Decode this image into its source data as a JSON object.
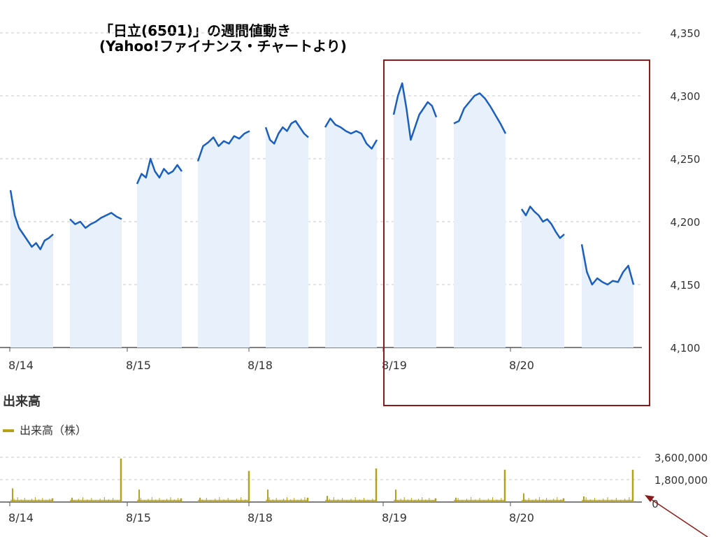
{
  "header": {
    "title_line1": "「日立(6501)」の週間値動き",
    "title_line2": "(Yahoo!ファイナンス・チャートより)"
  },
  "volume_section": {
    "heading": "出来高",
    "legend_label": "出来高（株）"
  },
  "colors": {
    "price_line": "#1a5fbf",
    "price_fill": "#e7f0fb",
    "volume_bar": "#b5a21a",
    "highlight_box": "#8b1a1a",
    "arrow": "#8b1a1a",
    "grid": "#c8c8c8",
    "axis_text": "#333333"
  },
  "chart_data": [
    {
      "type": "line",
      "subtype": "area",
      "name_text": "price",
      "x_ticks": [
        "8/14",
        "8/15",
        "8/18",
        "8/19",
        "8/20"
      ],
      "y_ticks": [
        "4,100",
        "4,150",
        "4,200",
        "4,250",
        "4,300",
        "4,350"
      ],
      "ylim": [
        4100,
        4350
      ],
      "grid": true,
      "y_axis_side": "right",
      "sessions": [
        {
          "day": "8/14",
          "half": "am",
          "values": [
            4225,
            4205,
            4195,
            4190,
            4185,
            4180,
            4183,
            4178,
            4185,
            4187,
            4190
          ]
        },
        {
          "day": "8/14",
          "half": "pm",
          "values": [
            4202,
            4198,
            4200,
            4195,
            4198,
            4200,
            4203,
            4205,
            4207,
            4204,
            4202
          ]
        },
        {
          "day": "8/15",
          "half": "am",
          "values": [
            4230,
            4238,
            4235,
            4250,
            4240,
            4235,
            4242,
            4238,
            4240,
            4245,
            4240
          ]
        },
        {
          "day": "8/15",
          "half": "pm",
          "values": [
            4248,
            4260,
            4263,
            4267,
            4260,
            4264,
            4262,
            4268,
            4266,
            4270,
            4272
          ]
        },
        {
          "day": "8/18",
          "half": "am",
          "values": [
            4275,
            4265,
            4262,
            4270,
            4275,
            4272,
            4278,
            4280,
            4275,
            4270,
            4267
          ]
        },
        {
          "day": "8/18",
          "half": "pm",
          "values": [
            4275,
            4282,
            4277,
            4275,
            4272,
            4270,
            4272,
            4270,
            4262,
            4258,
            4265
          ]
        },
        {
          "day": "8/19",
          "half": "am",
          "values": [
            4285,
            4300,
            4310,
            4290,
            4265,
            4275,
            4285,
            4290,
            4295,
            4292,
            4283
          ]
        },
        {
          "day": "8/19",
          "half": "pm",
          "values": [
            4278,
            4280,
            4290,
            4295,
            4300,
            4302,
            4298,
            4292,
            4285,
            4278,
            4270
          ]
        },
        {
          "day": "8/20",
          "half": "am",
          "values": [
            4210,
            4205,
            4212,
            4208,
            4205,
            4200,
            4202,
            4198,
            4192,
            4187,
            4190
          ]
        },
        {
          "day": "8/20",
          "half": "pm",
          "values": [
            4182,
            4160,
            4150,
            4155,
            4152,
            4150,
            4153,
            4152,
            4160,
            4165,
            4150
          ]
        }
      ]
    },
    {
      "type": "bar",
      "name_text": "出来高（株）",
      "x_ticks": [
        "8/14",
        "8/15",
        "8/18",
        "8/19",
        "8/20"
      ],
      "y_ticks": [
        "0",
        "1,800,000",
        "3,600,000"
      ],
      "ylim": [
        0,
        3600000
      ],
      "grid": true,
      "y_axis_side": "right",
      "sessions": [
        {
          "day": "8/14",
          "half": "am",
          "open_spike": 1100000,
          "close_spike": 300000
        },
        {
          "day": "8/14",
          "half": "pm",
          "open_spike": 350000,
          "close_spike": 3500000
        },
        {
          "day": "8/15",
          "half": "am",
          "open_spike": 1000000,
          "close_spike": 300000
        },
        {
          "day": "8/15",
          "half": "pm",
          "open_spike": 350000,
          "close_spike": 2500000
        },
        {
          "day": "8/18",
          "half": "am",
          "open_spike": 1000000,
          "close_spike": 350000
        },
        {
          "day": "8/18",
          "half": "pm",
          "open_spike": 500000,
          "close_spike": 2700000
        },
        {
          "day": "8/19",
          "half": "am",
          "open_spike": 1000000,
          "close_spike": 300000
        },
        {
          "day": "8/19",
          "half": "pm",
          "open_spike": 350000,
          "close_spike": 2600000
        },
        {
          "day": "8/20",
          "half": "am",
          "open_spike": 700000,
          "close_spike": 300000
        },
        {
          "day": "8/20",
          "half": "pm",
          "open_spike": 450000,
          "close_spike": 2600000
        }
      ]
    }
  ]
}
